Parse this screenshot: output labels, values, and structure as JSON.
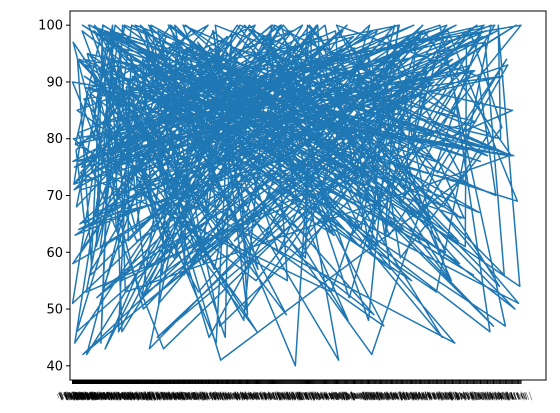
{
  "chart_data": {
    "type": "line",
    "title": "",
    "xlabel": "",
    "ylabel": "",
    "ylim": [
      37.5,
      102.5
    ],
    "y_ticks": [
      40,
      50,
      60,
      70,
      80,
      90,
      100
    ],
    "grid": false,
    "legend": "none",
    "x_tick_labels": "dense, overlapping and illegible (one categorical label per data point)",
    "colors": {
      "line": "#1f77b4",
      "axes": "#000000",
      "background": "#ffffff"
    },
    "series": [
      {
        "values": [
          73,
          100,
          64,
          80,
          99,
          91,
          60,
          90,
          56,
          97,
          83,
          44,
          100,
          68,
          92,
          77,
          40,
          88,
          98,
          51,
          73,
          86,
          96,
          57,
          99,
          66,
          94,
          84,
          43,
          79,
          100,
          90,
          62,
          97,
          75,
          55,
          99,
          87,
          70,
          93,
          48,
          100,
          82,
          64,
          95,
          78,
          99,
          46,
          89,
          72,
          100,
          61,
          96,
          85,
          54,
          98,
          76,
          92,
          42,
          99,
          69,
          87,
          100,
          58,
          93,
          80,
          67,
          97,
          50,
          88,
          100,
          74,
          94,
          63,
          99,
          86,
          45,
          91,
          78,
          100,
          60,
          95,
          83,
          53,
          98,
          70,
          89,
          100,
          66,
          94,
          41,
          85,
          99,
          75,
          92,
          57,
          100,
          81,
          68,
          96,
          49,
          88,
          100,
          72,
          93,
          62,
          99,
          84,
          47,
          91,
          77,
          100,
          59,
          95,
          86,
          52,
          98,
          71,
          89,
          100,
          65,
          93,
          79,
          44,
          97,
          83,
          100,
          56,
          90,
          74,
          99,
          61,
          94,
          87,
          48,
          100,
          69,
          92,
          80,
          55,
          98,
          76,
          96,
          63,
          100,
          85,
          42,
          91,
          73,
          99,
          58,
          95,
          82,
          100,
          51,
          88,
          67,
          97,
          79,
          100,
          46,
          93,
          71,
          99,
          84,
          60,
          96,
          77,
          100,
          53,
          89,
          65,
          98,
          81,
          43,
          94,
          75,
          100,
          62,
          91,
          86,
          57,
          99,
          69,
          95,
          78,
          100,
          50,
          88,
          72,
          97,
          64,
          100,
          83,
          45,
          92,
          76,
          99,
          59,
          96,
          80,
          100,
          54,
          90,
          68,
          98,
          73,
          41,
          94,
          85,
          100,
          61,
          89,
          77,
          99,
          52,
          95,
          82,
          100,
          47,
          91,
          70,
          97,
          66,
          100,
          87,
          56,
          93,
          74,
          99,
          63,
          88,
          79,
          100,
          44,
          96,
          84,
          58,
          98,
          71,
          92,
          100,
          65,
          89,
          76,
          99,
          49,
          95,
          81,
          100,
          55,
          90,
          69,
          97,
          62,
          100,
          86,
          43,
          93,
          78,
          99,
          57,
          88,
          74,
          100,
          51,
          96,
          83,
          66,
          98,
          70,
          91,
          100,
          60,
          94,
          80,
          45,
          99,
          72,
          89,
          100,
          64,
          95,
          85,
          53,
          97,
          77,
          100,
          48,
          92,
          68,
          99,
          82,
          59,
          96,
          75,
          100,
          54,
          90,
          71,
          98,
          63,
          100,
          87,
          46,
          93,
          79,
          99,
          56,
          88,
          73,
          100,
          61,
          95,
          84,
          50,
          97,
          67,
          92,
          100,
          76,
          89,
          42,
          98,
          81,
          65,
          100,
          58,
          94,
          70,
          99,
          85,
          47,
          91,
          78,
          100,
          62,
          96,
          74,
          53,
          98,
          80,
          88,
          100,
          66,
          93,
          71,
          99,
          55,
          90,
          83,
          100,
          49,
          95,
          77,
          97,
          60,
          100,
          86,
          44,
          92,
          69,
          99,
          75,
          89,
          100,
          57,
          94,
          82,
          64,
          98,
          72,
          91,
          100,
          52,
          96,
          79,
          47,
          99,
          67,
          88,
          100,
          61,
          93,
          85,
          56,
          97,
          74,
          100,
          68,
          90,
          80,
          99,
          45,
          95,
          76,
          100,
          59,
          92,
          83,
          63,
          98,
          70,
          89,
          100,
          54,
          96,
          78,
          99,
          65,
          91,
          86,
          100,
          50,
          94,
          73,
          97,
          58,
          100,
          81,
          62,
          90,
          77,
          99,
          46,
          93,
          84,
          100,
          67,
          88,
          72,
          98,
          55,
          95,
          80,
          100,
          63,
          91,
          76,
          99,
          60,
          96,
          85,
          53,
          89,
          78,
          100,
          66,
          94,
          72,
          97,
          61,
          100,
          83,
          57,
          92,
          75,
          99,
          64,
          90,
          80,
          100,
          69,
          95,
          77,
          98,
          46,
          88,
          86,
          62,
          91,
          73,
          99,
          79,
          100,
          68,
          94,
          81,
          55,
          87,
          76,
          100,
          70,
          93,
          84,
          96,
          65,
          78,
          99,
          75,
          91,
          82,
          53,
          77,
          89,
          66,
          76,
          90,
          83,
          77,
          95,
          86,
          72
        ]
      }
    ]
  }
}
